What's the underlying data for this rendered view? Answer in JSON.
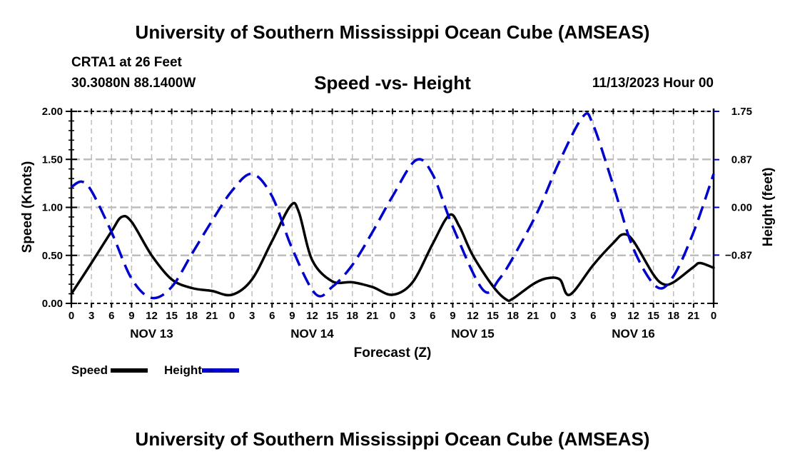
{
  "header": {
    "main_title": "University of Southern Mississippi Ocean Cube (AMSEAS)",
    "station": "CRTA1 at 26 Feet",
    "coordinates": "30.3080N  88.1400W",
    "subtitle": "Speed -vs- Height",
    "date_time": "11/13/2023 Hour 00",
    "footer_title": "University of Southern Mississippi Ocean Cube (AMSEAS)"
  },
  "legend": {
    "items": [
      {
        "label": "Speed",
        "color": "#000000",
        "style": "solid"
      },
      {
        "label": "Height",
        "color": "#0000cc",
        "style": "dashed"
      }
    ]
  },
  "chart_data": {
    "type": "line",
    "title": "Speed -vs- Height",
    "xlabel": "Forecast (Z)",
    "ylabel": "Speed (Knots)",
    "y2label": "Height (feet)",
    "xlim": [
      0,
      96
    ],
    "ylim": [
      0,
      2.0
    ],
    "y2lim": [
      -1.75,
      1.75
    ],
    "grid": true,
    "legend_position": "bottom-left",
    "x_tick_hours": [
      0,
      3,
      6,
      9,
      12,
      15,
      18,
      21,
      24,
      27,
      30,
      33,
      36,
      39,
      42,
      45,
      48,
      51,
      54,
      57,
      60,
      63,
      66,
      69,
      72,
      75,
      78,
      81,
      84,
      87,
      90,
      93,
      96
    ],
    "x_tick_labels": [
      "0",
      "3",
      "6",
      "9",
      "12",
      "15",
      "18",
      "21",
      "0",
      "3",
      "6",
      "9",
      "12",
      "15",
      "18",
      "21",
      "0",
      "3",
      "6",
      "9",
      "12",
      "15",
      "18",
      "21",
      "0",
      "3",
      "6",
      "9",
      "12",
      "15",
      "18",
      "21",
      "0"
    ],
    "date_labels": [
      {
        "label": "NOV 13",
        "hour": 12
      },
      {
        "label": "NOV 14",
        "hour": 36
      },
      {
        "label": "NOV 15",
        "hour": 60
      },
      {
        "label": "NOV 16",
        "hour": 84
      }
    ],
    "y_ticks": [
      0,
      0.5,
      1.0,
      1.5,
      2.0
    ],
    "y_tick_labels": [
      "0.00",
      "0.50",
      "1.00",
      "1.50",
      "2.00"
    ],
    "y2_ticks": [
      -0.87,
      0.0,
      0.87,
      1.75
    ],
    "y2_tick_labels": [
      "-0.87",
      "0.00",
      "0.87",
      "1.75"
    ],
    "series": [
      {
        "name": "Speed",
        "axis": "left",
        "color": "#000000",
        "x": [
          0,
          3,
          6,
          7.5,
          9,
          12,
          15,
          18,
          21,
          24,
          27,
          30,
          32.8,
          34,
          36,
          39,
          42,
          45,
          48,
          51,
          54,
          56.5,
          58,
          60,
          63,
          65,
          66,
          69,
          71,
          73,
          74.5,
          78,
          81,
          82.5,
          84,
          87,
          88.5,
          90,
          93,
          94,
          96
        ],
        "values": [
          0.1,
          0.42,
          0.75,
          0.9,
          0.85,
          0.5,
          0.25,
          0.16,
          0.13,
          0.09,
          0.25,
          0.65,
          1.02,
          0.95,
          0.45,
          0.23,
          0.22,
          0.17,
          0.09,
          0.22,
          0.62,
          0.92,
          0.8,
          0.5,
          0.18,
          0.04,
          0.05,
          0.2,
          0.26,
          0.25,
          0.09,
          0.4,
          0.63,
          0.72,
          0.65,
          0.3,
          0.2,
          0.22,
          0.38,
          0.42,
          0.37
        ]
      },
      {
        "name": "Height",
        "axis": "right",
        "color": "#0000cc",
        "x": [
          0,
          1.5,
          3,
          6,
          9,
          12,
          15,
          18,
          21,
          24,
          27,
          30,
          33,
          36.5,
          39,
          42,
          45,
          48,
          51.5,
          54,
          57,
          61.5,
          64,
          67,
          70,
          73,
          76.5,
          78,
          81,
          84,
          87.5,
          90,
          93,
          96
        ],
        "values": [
          0.37,
          0.47,
          0.3,
          -0.45,
          -1.3,
          -1.65,
          -1.45,
          -0.85,
          -0.25,
          0.3,
          0.61,
          0.2,
          -0.75,
          -1.58,
          -1.45,
          -1.05,
          -0.45,
          0.2,
          0.86,
          0.6,
          -0.35,
          -1.5,
          -1.3,
          -0.7,
          0.0,
          0.85,
          1.66,
          1.5,
          0.4,
          -0.75,
          -1.45,
          -1.25,
          -0.45,
          0.61
        ]
      }
    ]
  }
}
